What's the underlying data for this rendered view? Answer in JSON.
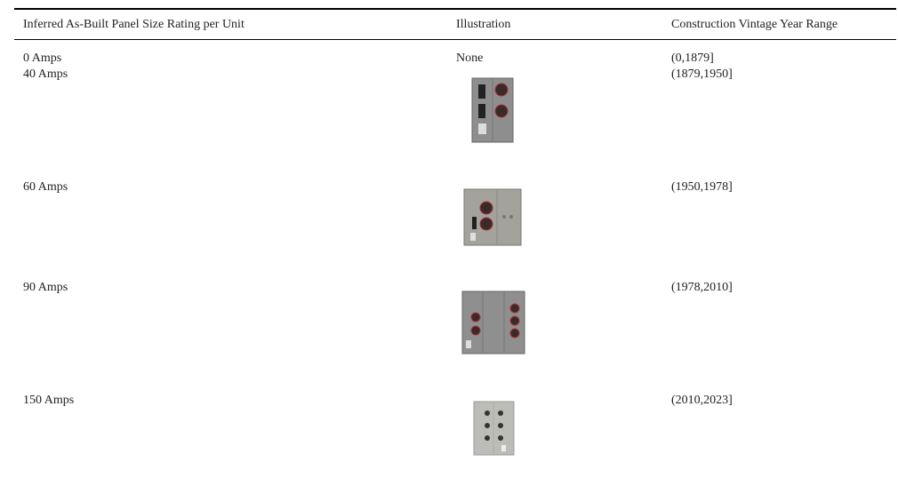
{
  "table": {
    "header": [
      "Inferred As-Built Panel Size Rating per Unit",
      "Illustration",
      "Construction Vintage Year Range"
    ],
    "rows": [
      {
        "rating": "0 Amps",
        "illustration": "None",
        "range": "(0,1879]"
      },
      {
        "rating": "40 Amps",
        "range": "(1879,1950]"
      },
      {
        "rating": "60 Amps",
        "range": "(1950,1978]"
      },
      {
        "rating": "90 Amps",
        "range": "(1978,2010]"
      },
      {
        "rating": "150 Amps",
        "range": "(2010,2023]"
      }
    ]
  }
}
